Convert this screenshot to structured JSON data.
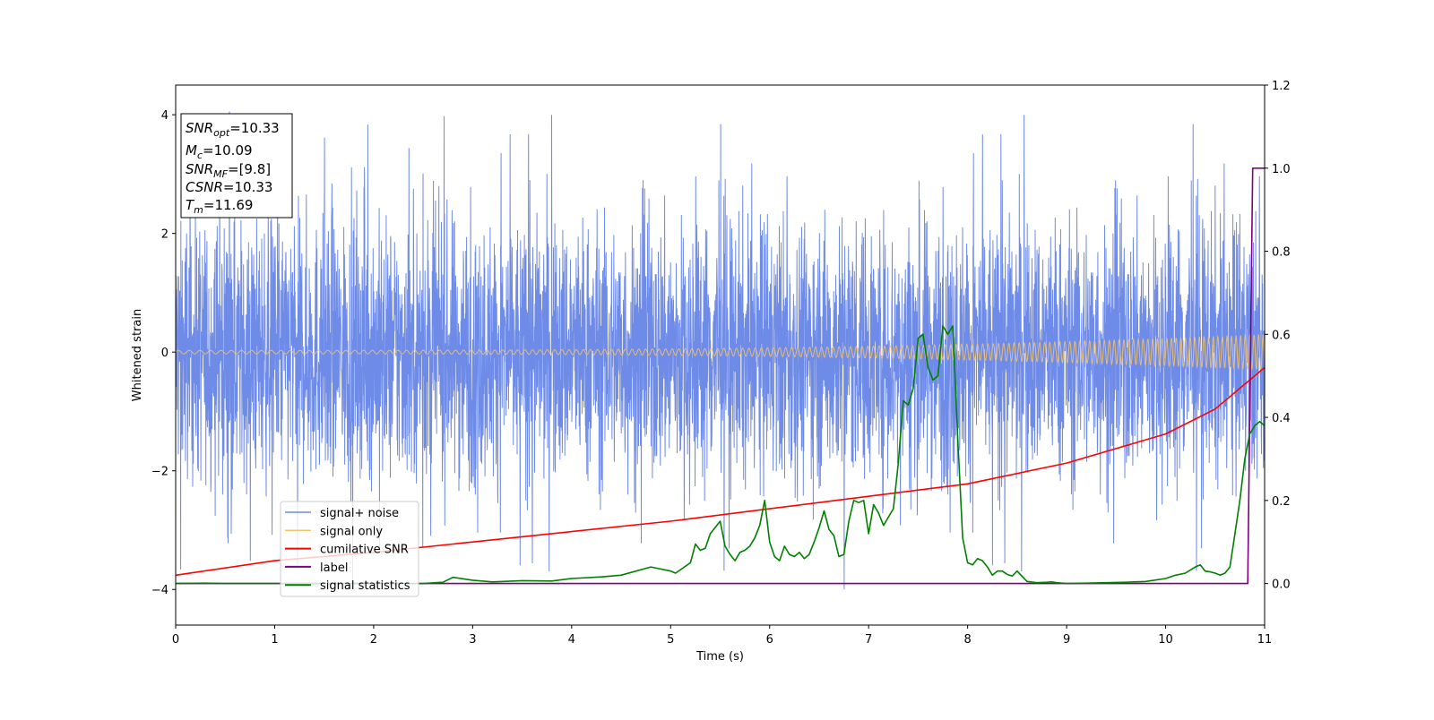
{
  "chart_data": {
    "type": "line",
    "xlabel": "Time (s)",
    "ylabel": "Whitened strain",
    "xlim": [
      0,
      11
    ],
    "ylim": [
      -4.6,
      4.5
    ],
    "y2lim": [
      -0.1,
      1.2
    ],
    "x_ticks": [
      "0",
      "1",
      "2",
      "3",
      "4",
      "5",
      "6",
      "7",
      "8",
      "9",
      "10",
      "11"
    ],
    "y_ticks": [
      "4",
      "2",
      "0",
      "−2",
      "−4"
    ],
    "y2_ticks": [
      "1.2",
      "1.0",
      "0.8",
      "0.6",
      "0.4",
      "0.2",
      "0.0"
    ],
    "grid": false,
    "legend_position": "lower-left",
    "annotation": [
      {
        "sym": "SNR",
        "sub": "opt",
        "val": "=10.33"
      },
      {
        "sym": "M",
        "sub": "c",
        "val": "=10.09"
      },
      {
        "sym": "SNR",
        "sub": "MF",
        "val": "=[9.8]"
      },
      {
        "sym": "CSNR",
        "sub": "",
        "val": "=10.33"
      },
      {
        "sym": "T",
        "sub": "m",
        "val": "=11.69"
      }
    ],
    "series": [
      {
        "name": "signal+ noise",
        "axis": "left",
        "color": "#6f8be8",
        "noise_envelope": {
          "typical": 1.9,
          "peak": 4.1,
          "min": -4.15
        }
      },
      {
        "name": "signal only",
        "axis": "left",
        "color": "#f5c36a",
        "chirp": {
          "amplitude_start": 0.03,
          "amplitude_end": 0.3
        }
      },
      {
        "name": "cumilative SNR",
        "axis": "right",
        "color": "#ff0000",
        "x": [
          0,
          1,
          2,
          3,
          4,
          5,
          6,
          7,
          8,
          9,
          10,
          10.5,
          11
        ],
        "values": [
          0.02,
          0.055,
          0.075,
          0.1,
          0.125,
          0.15,
          0.18,
          0.21,
          0.24,
          0.29,
          0.36,
          0.42,
          0.52
        ]
      },
      {
        "name": "label",
        "axis": "right",
        "color": "#800080",
        "x": [
          0,
          10.83,
          10.88,
          11
        ],
        "values": [
          0,
          0,
          1.0,
          1.0
        ]
      },
      {
        "name": "signal statistics",
        "axis": "right",
        "color": "#008000",
        "x": [
          0,
          0.3,
          0.5,
          1,
          2,
          2.5,
          2.7,
          2.8,
          3.0,
          3.2,
          3.5,
          3.8,
          4.0,
          4.3,
          4.5,
          4.8,
          5.0,
          5.05,
          5.2,
          5.25,
          5.3,
          5.35,
          5.4,
          5.5,
          5.55,
          5.6,
          5.65,
          5.7,
          5.75,
          5.8,
          5.85,
          5.9,
          5.95,
          6.0,
          6.05,
          6.1,
          6.15,
          6.2,
          6.25,
          6.3,
          6.35,
          6.4,
          6.45,
          6.5,
          6.55,
          6.6,
          6.65,
          6.7,
          6.75,
          6.8,
          6.85,
          6.9,
          6.95,
          7.0,
          7.05,
          7.1,
          7.15,
          7.2,
          7.25,
          7.3,
          7.35,
          7.4,
          7.45,
          7.5,
          7.55,
          7.6,
          7.65,
          7.7,
          7.75,
          7.8,
          7.85,
          7.9,
          7.95,
          8.0,
          8.05,
          8.1,
          8.15,
          8.2,
          8.25,
          8.3,
          8.35,
          8.4,
          8.45,
          8.5,
          8.6,
          8.7,
          8.8,
          8.85,
          8.9,
          9.0,
          9.2,
          9.4,
          9.6,
          9.8,
          10.0,
          10.1,
          10.2,
          10.3,
          10.35,
          10.4,
          10.45,
          10.5,
          10.55,
          10.6,
          10.65,
          10.7,
          10.75,
          10.8,
          10.85,
          10.9,
          10.95,
          11.0
        ],
        "values": [
          0.0,
          0.001,
          0.0,
          0.0,
          0.0,
          0.0,
          0.003,
          0.015,
          0.008,
          0.004,
          0.007,
          0.006,
          0.012,
          0.016,
          0.02,
          0.04,
          0.03,
          0.025,
          0.05,
          0.095,
          0.08,
          0.085,
          0.12,
          0.15,
          0.09,
          0.07,
          0.055,
          0.075,
          0.08,
          0.09,
          0.11,
          0.14,
          0.2,
          0.1,
          0.065,
          0.055,
          0.09,
          0.07,
          0.065,
          0.075,
          0.06,
          0.07,
          0.1,
          0.135,
          0.175,
          0.13,
          0.115,
          0.065,
          0.07,
          0.15,
          0.2,
          0.195,
          0.2,
          0.12,
          0.19,
          0.17,
          0.14,
          0.16,
          0.18,
          0.29,
          0.44,
          0.43,
          0.47,
          0.59,
          0.6,
          0.52,
          0.49,
          0.5,
          0.62,
          0.6,
          0.62,
          0.35,
          0.11,
          0.05,
          0.045,
          0.06,
          0.055,
          0.04,
          0.02,
          0.03,
          0.03,
          0.022,
          0.018,
          0.03,
          0.005,
          0.002,
          0.003,
          0.004,
          0.002,
          0.0,
          0.001,
          0.002,
          0.003,
          0.005,
          0.012,
          0.02,
          0.025,
          0.04,
          0.045,
          0.03,
          0.028,
          0.025,
          0.02,
          0.025,
          0.04,
          0.12,
          0.2,
          0.3,
          0.36,
          0.38,
          0.39,
          0.38
        ]
      }
    ]
  }
}
